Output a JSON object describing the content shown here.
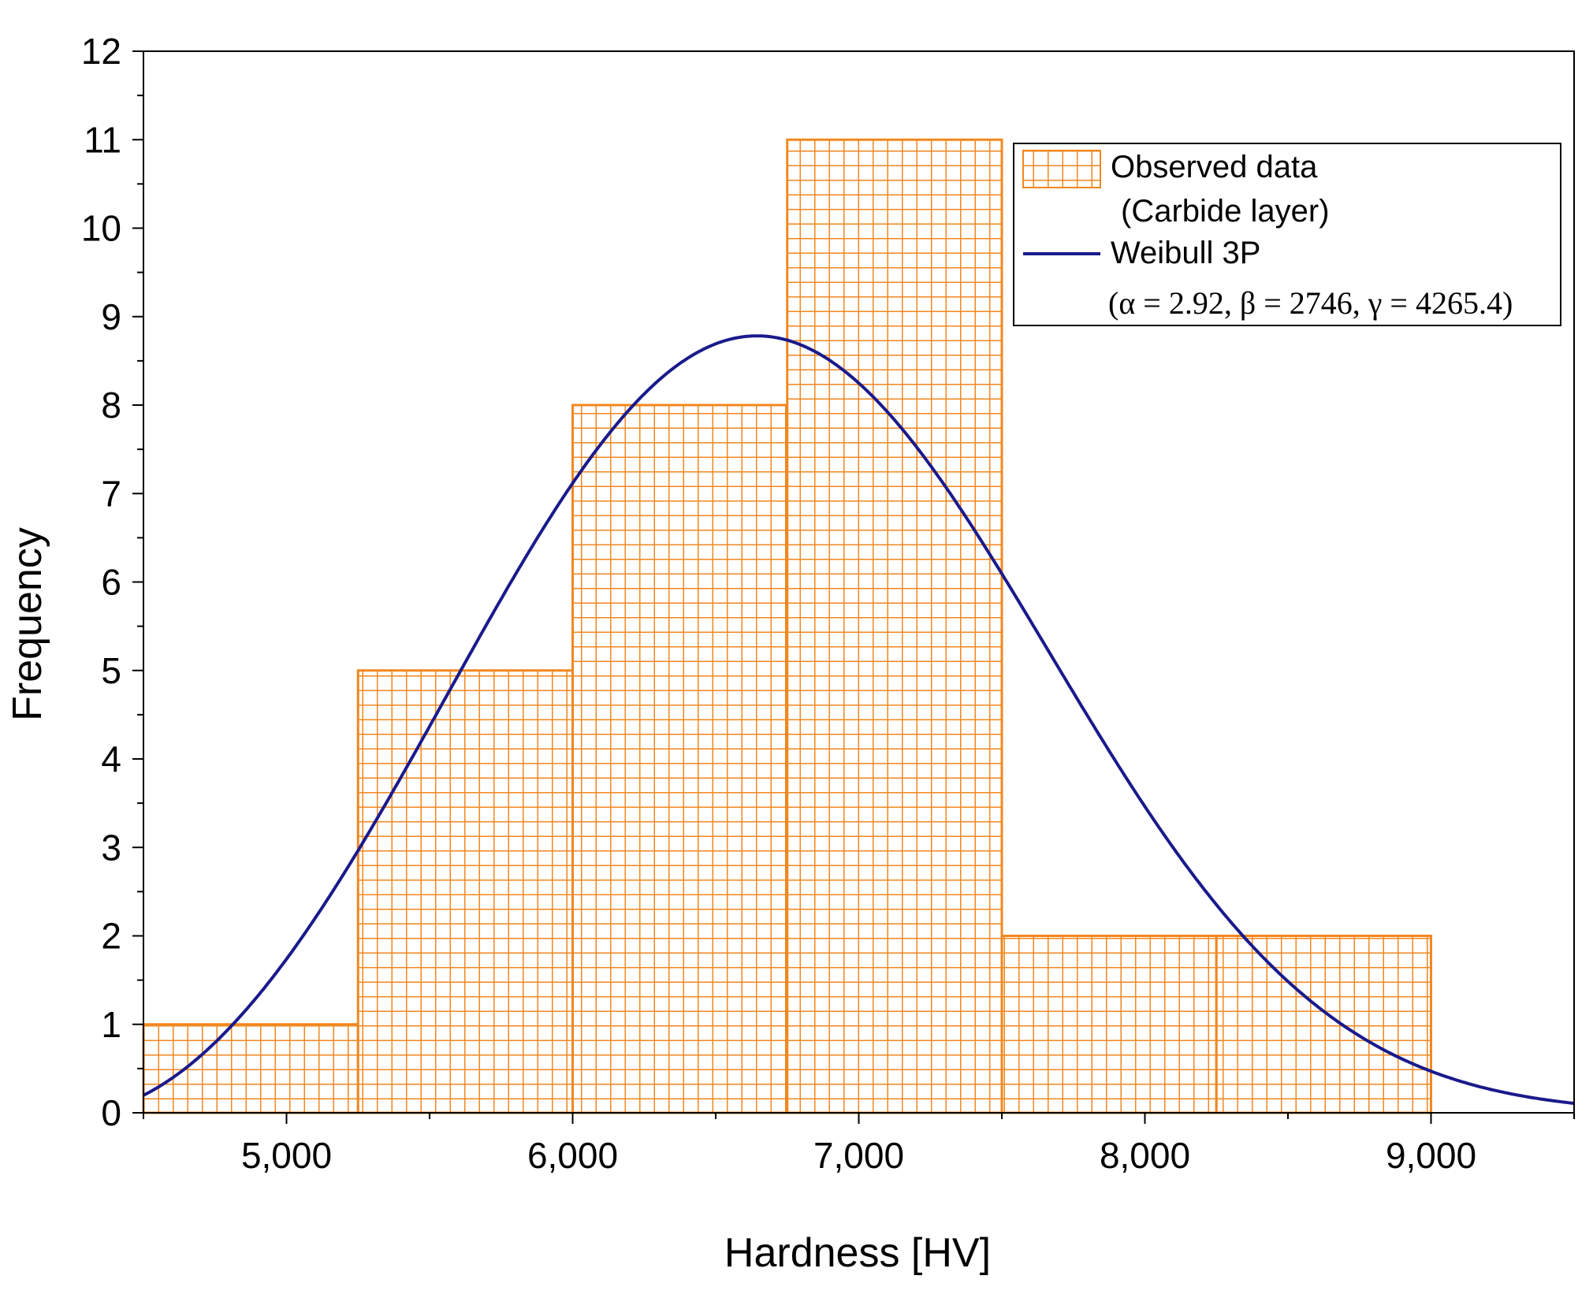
{
  "chart_data": {
    "type": "bar",
    "subtype": "histogram",
    "title": "",
    "xlabel": "Hardness [HV]",
    "ylabel": "Frequency",
    "xlim": [
      4500,
      9500
    ],
    "ylim": [
      0,
      12
    ],
    "x_ticks": [
      5000,
      6000,
      7000,
      8000,
      9000
    ],
    "x_tick_labels": [
      "5,000",
      "6,000",
      "7,000",
      "8,000",
      "9,000"
    ],
    "y_ticks": [
      0,
      1,
      2,
      3,
      4,
      5,
      6,
      7,
      8,
      9,
      10,
      11,
      12
    ],
    "y_tick_labels": [
      "0",
      "1",
      "2",
      "3",
      "4",
      "5",
      "6",
      "7",
      "8",
      "9",
      "10",
      "11",
      "12"
    ],
    "grid": false,
    "bins": [
      {
        "start": 4500,
        "end": 5250,
        "value": 1
      },
      {
        "start": 5250,
        "end": 6000,
        "value": 5
      },
      {
        "start": 6000,
        "end": 6750,
        "value": 8
      },
      {
        "start": 6750,
        "end": 7500,
        "value": 11
      },
      {
        "start": 7500,
        "end": 8250,
        "value": 2
      },
      {
        "start": 8250,
        "end": 9000,
        "value": 2
      }
    ],
    "series": [
      {
        "name": "Observed data",
        "kind": "histogram",
        "color": "#f2871e"
      },
      {
        "name": "Weibull 3P",
        "kind": "fit-curve",
        "color": "#1a1a8c",
        "params": {
          "alpha": 2.92,
          "beta": 2746,
          "gamma": 4265.4
        },
        "scale_factor": 21000
      }
    ],
    "legend": {
      "position": "top-right",
      "entry1_line1": "Observed data",
      "entry1_line2": "(Carbide layer)",
      "entry2_line1": "Weibull 3P",
      "entry2_line2": "(α = 2.92, β = 2746, γ = 4265.4)"
    }
  }
}
